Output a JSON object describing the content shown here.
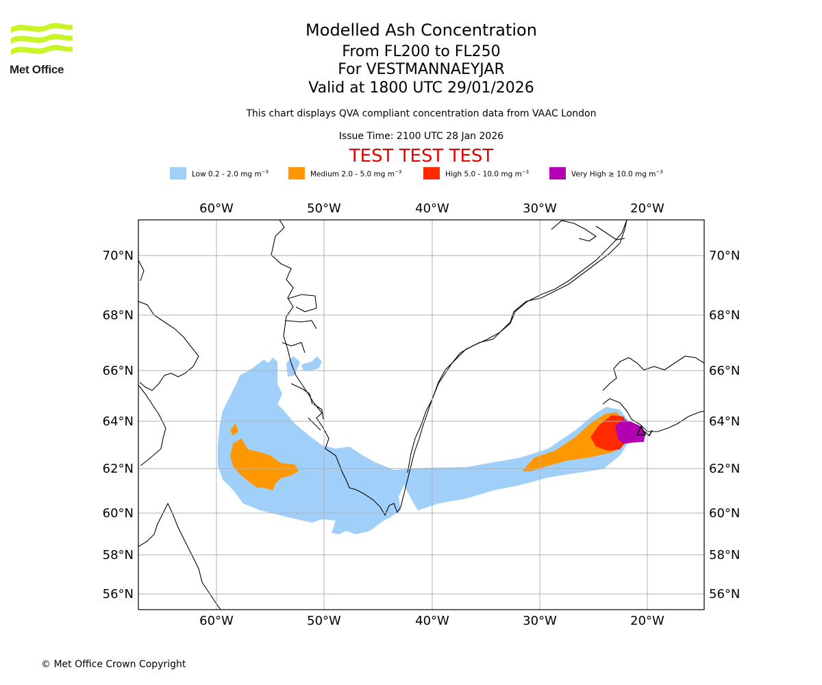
{
  "brand": {
    "logo_text": "Met Office"
  },
  "header": {
    "title": "Modelled Ash Concentration",
    "level_range": "From FL200 to FL250",
    "volcano": "For VESTMANNAEYJAR",
    "valid_time": "Valid at 1800 UTC 29/01/2026",
    "description": "This chart displays QVA compliant concentration data from VAAC London",
    "issue_time": "Issue Time: 2100 UTC 28 Jan 2026",
    "test_banner": "TEST TEST TEST"
  },
  "legend": [
    {
      "label": "Low 0.2 - 2.0 mg m",
      "color": "#a0d0fa"
    },
    {
      "label": "Medium 2.0 - 5.0 mg m",
      "color": "#ff9800"
    },
    {
      "label": "High 5.0 - 10.0 mg m",
      "color": "#ff2a00"
    },
    {
      "label": "Very High ≥ 10.0 mg m",
      "color": "#b300b3"
    }
  ],
  "legend_unit_exponent": "−3",
  "map": {
    "longitude_labels": [
      "60°W",
      "50°W",
      "40°W",
      "30°W",
      "20°W"
    ],
    "latitude_labels": [
      "70°N",
      "68°N",
      "66°N",
      "64°N",
      "62°N",
      "60°N",
      "58°N",
      "56°N"
    ],
    "colors": {
      "gridline": "#b0b0b0",
      "coastline": "#000000",
      "frame": "#000000"
    }
  },
  "footer": {
    "copyright": "© Met Office Crown Copyright"
  }
}
